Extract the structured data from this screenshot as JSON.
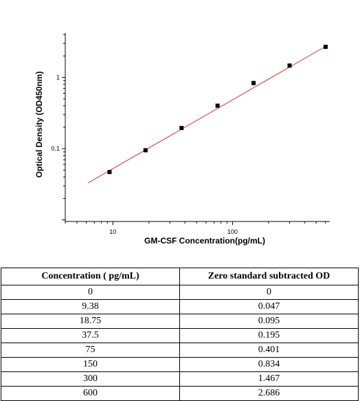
{
  "chart_data": {
    "type": "scatter",
    "title": "",
    "xlabel": "GM-CSF  Concentration(pg/mL)",
    "ylabel": "Optical Density (OD450nm)",
    "x_scale": "log",
    "y_scale": "log",
    "xlim": [
      4,
      650
    ],
    "ylim": [
      0.0095,
      4.2
    ],
    "x_ticks": [
      10,
      100
    ],
    "x_tick_labels": [
      "10",
      "100"
    ],
    "y_ticks": [
      0.1,
      1
    ],
    "y_tick_labels": [
      "0.1",
      "1"
    ],
    "grid": false,
    "x": [
      9.38,
      18.75,
      37.5,
      75,
      150,
      300,
      600
    ],
    "y": [
      0.047,
      0.095,
      0.195,
      0.401,
      0.834,
      1.467,
      2.686
    ],
    "fit_line": {
      "color": "#e03030",
      "x": [
        6.2,
        600
      ],
      "y": [
        0.033,
        2.73
      ]
    },
    "marker_color": "#000000"
  },
  "table": {
    "headers": [
      "Concentration ( pg/mL)",
      "Zero standard subtracted OD"
    ],
    "rows": [
      [
        "0",
        "0"
      ],
      [
        "9.38",
        "0.047"
      ],
      [
        "18.75",
        "0.095"
      ],
      [
        "37.5",
        "0.195"
      ],
      [
        "75",
        "0.401"
      ],
      [
        "150",
        "0.834"
      ],
      [
        "300",
        "1.467"
      ],
      [
        "600",
        "2.686"
      ]
    ]
  }
}
